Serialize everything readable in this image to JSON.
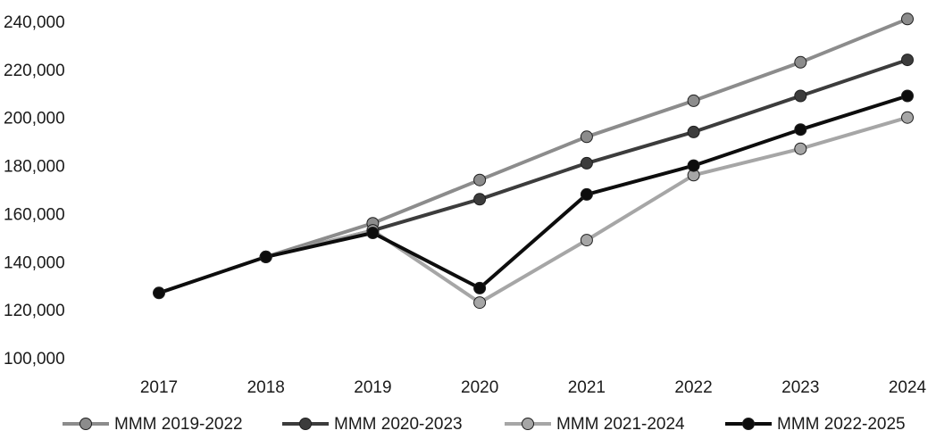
{
  "chart_data": {
    "type": "line",
    "title": "",
    "xlabel": "",
    "ylabel": "",
    "x": [
      "2017",
      "2018",
      "2019",
      "2020",
      "2021",
      "2022",
      "2023",
      "2024"
    ],
    "ylim": [
      100000,
      240000
    ],
    "yticks": [
      "100,000",
      "120,000",
      "140,000",
      "160,000",
      "180,000",
      "200,000",
      "220,000",
      "240,000"
    ],
    "ytick_values": [
      100000,
      120000,
      140000,
      160000,
      180000,
      200000,
      220000,
      240000
    ],
    "grid": false,
    "legend_position": "bottom",
    "series": [
      {
        "name": "MMM 2019-2022",
        "color": "#8c8c8c",
        "values": [
          null,
          142000,
          156000,
          174000,
          192000,
          207000,
          223000,
          241000
        ]
      },
      {
        "name": "MMM 2020-2023",
        "color": "#3c3c3c",
        "values": [
          null,
          142000,
          153000,
          166000,
          181000,
          194000,
          209000,
          224000
        ]
      },
      {
        "name": "MMM 2021-2024",
        "color": "#a6a6a6",
        "values": [
          null,
          142000,
          153000,
          123000,
          149000,
          176000,
          187000,
          200000
        ]
      },
      {
        "name": "MMM 2022-2025",
        "color": "#0d0d0d",
        "values": [
          127000,
          142000,
          152000,
          129000,
          168000,
          180000,
          195000,
          209000
        ]
      }
    ]
  }
}
